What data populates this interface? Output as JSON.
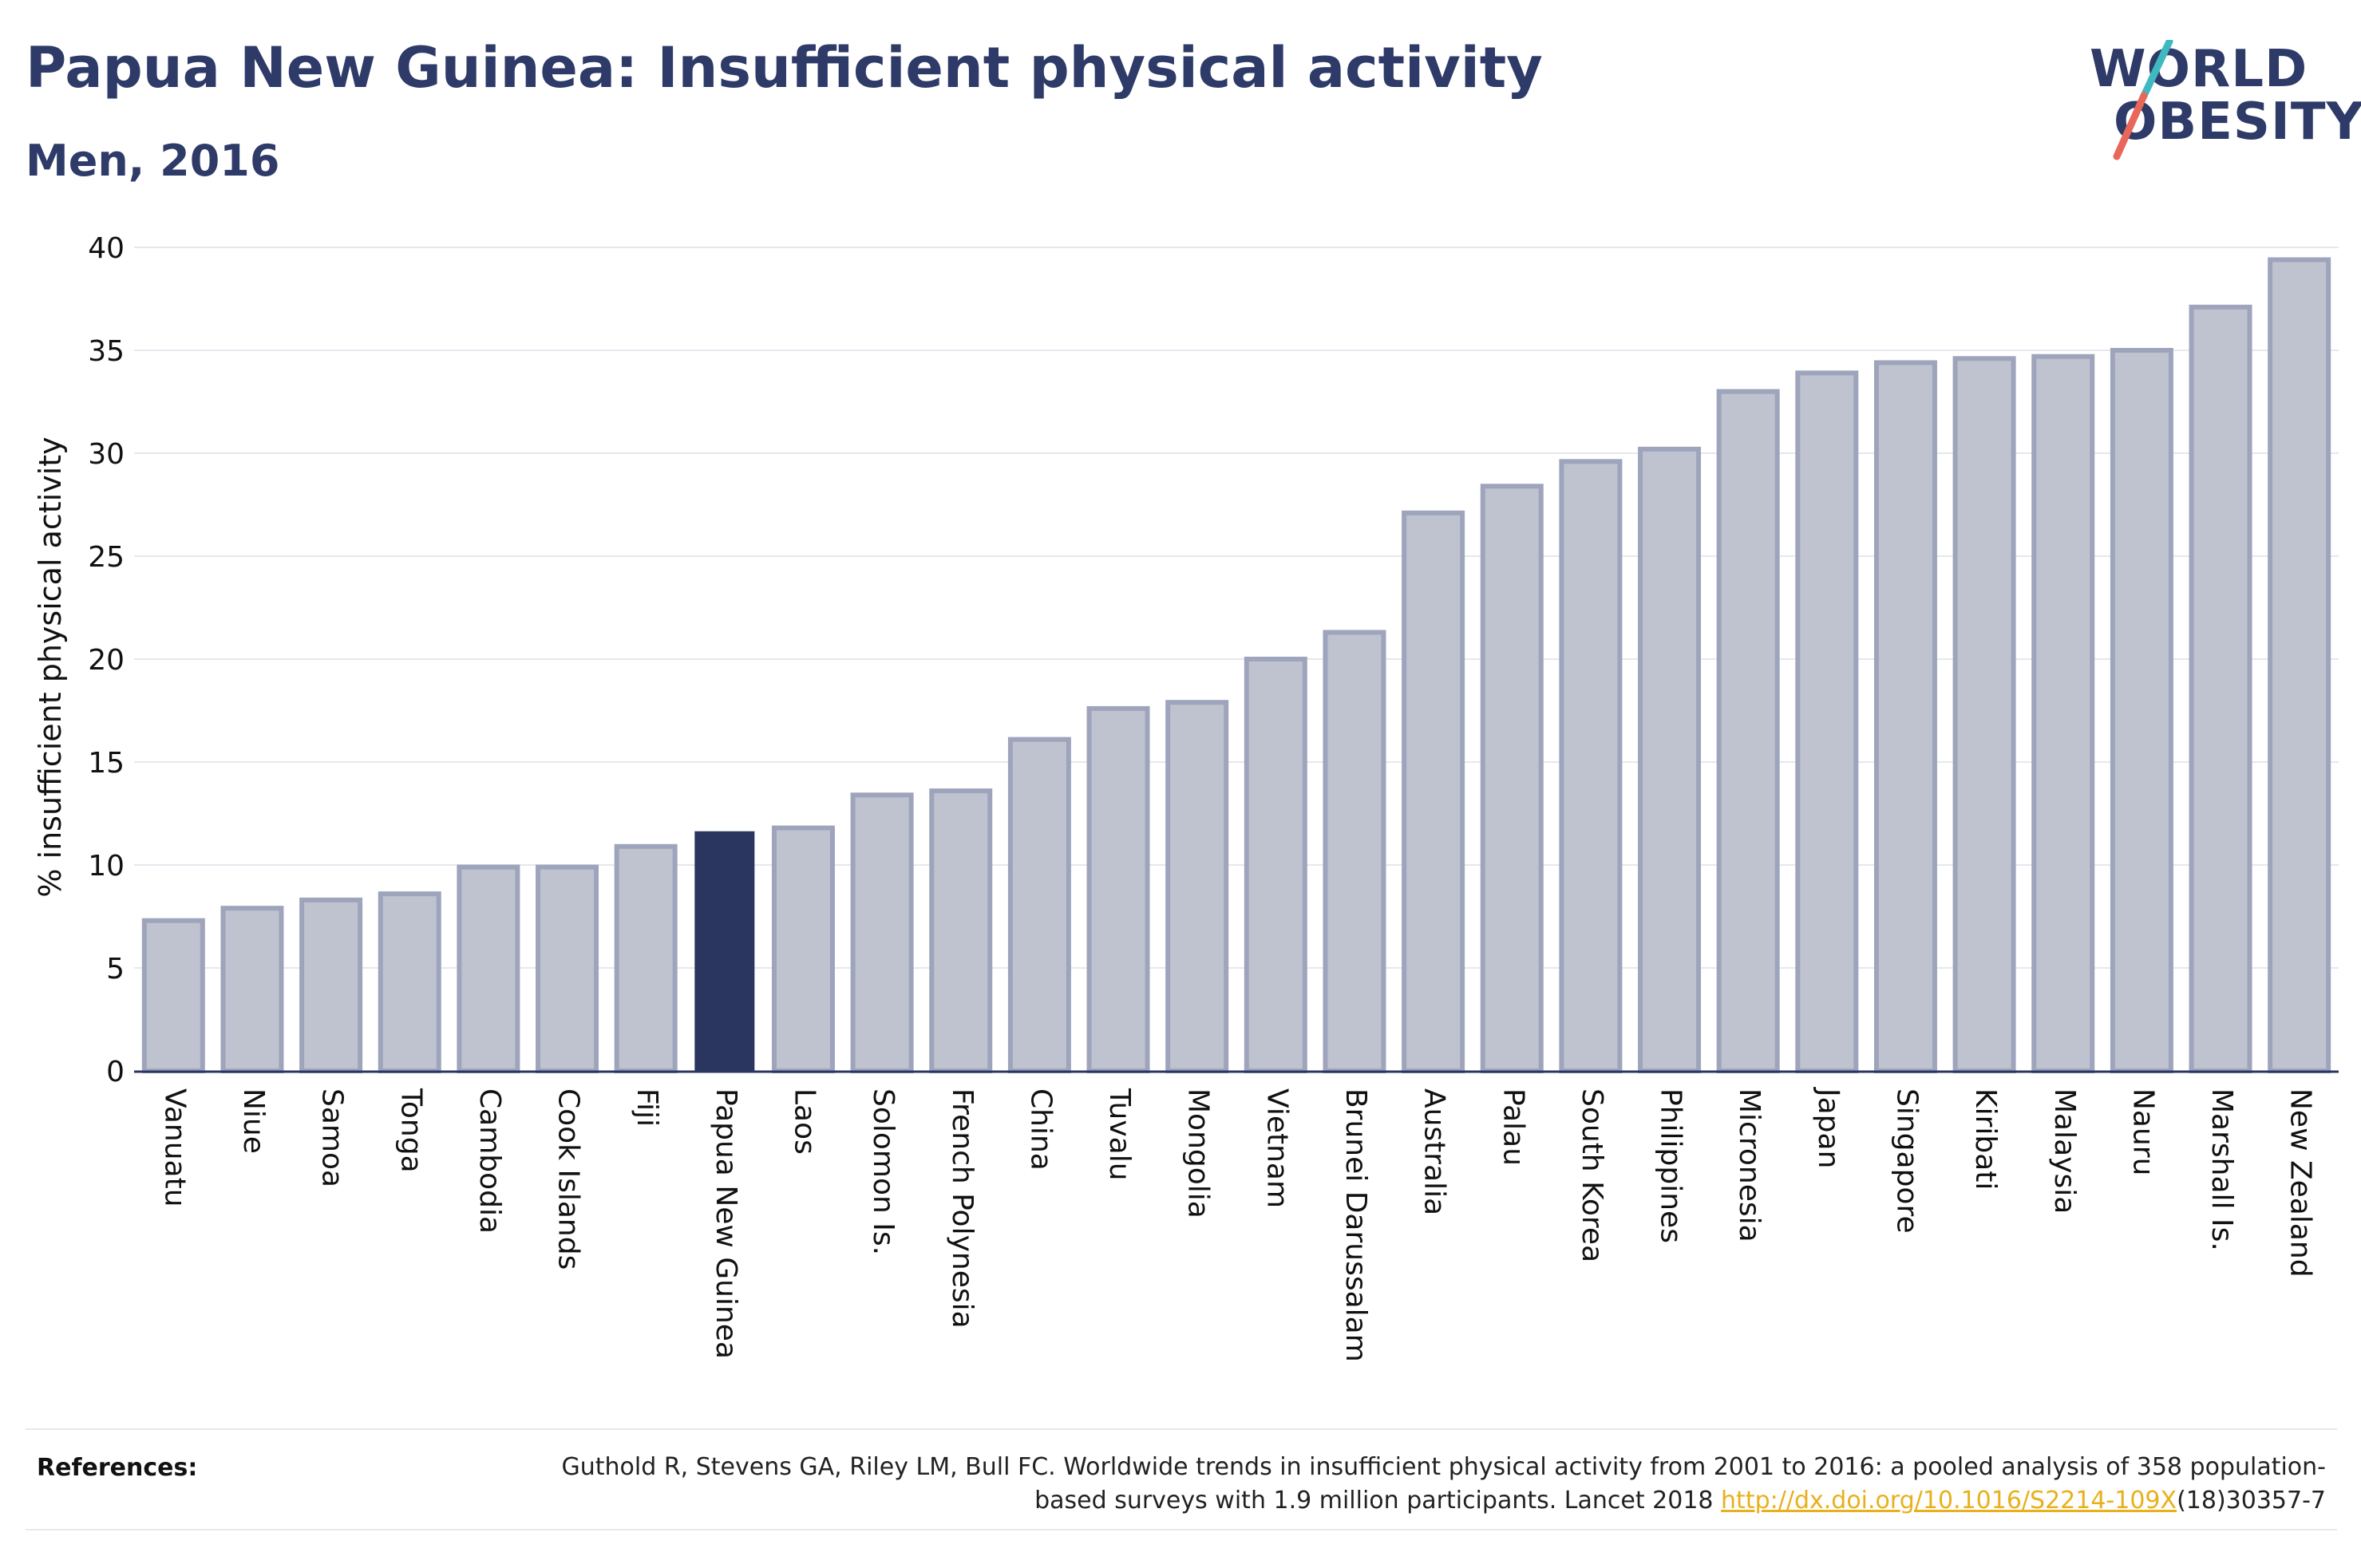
{
  "header": {
    "title": "Papua New Guinea: Insufficient physical activity",
    "subtitle": "Men, 2016"
  },
  "logo": {
    "line1": "WORLD",
    "line2": "OBESITY",
    "colors": {
      "text": "#2e3a68",
      "slash_top": "#3fb8c0",
      "slash_bottom": "#e8675a"
    }
  },
  "colors": {
    "highlight_bar": "#2b3660",
    "other_bar_fill": "#bfc3d0",
    "other_bar_stroke": "#9ea4bb",
    "grid": "#e6e8ee",
    "axis": "#2b3660"
  },
  "chart_data": {
    "type": "bar",
    "title": "Papua New Guinea: Insufficient physical activity",
    "subtitle": "Men, 2016",
    "xlabel": "",
    "ylabel": "% insufficient physical activity",
    "ylim": [
      0,
      40
    ],
    "yticks": [
      0,
      5,
      10,
      15,
      20,
      25,
      30,
      35,
      40
    ],
    "grid": true,
    "highlight": "Papua New Guinea",
    "categories": [
      "Vanuatu",
      "Niue",
      "Samoa",
      "Tonga",
      "Cambodia",
      "Cook Islands",
      "Fiji",
      "Papua New Guinea",
      "Laos",
      "Solomon Is.",
      "French Polynesia",
      "China",
      "Tuvalu",
      "Mongolia",
      "Vietnam",
      "Brunei Darussalam",
      "Australia",
      "Palau",
      "South Korea",
      "Philippines",
      "Micronesia",
      "Japan",
      "Singapore",
      "Kiribati",
      "Malaysia",
      "Nauru",
      "Marshall Is.",
      "New Zealand"
    ],
    "values": [
      7.3,
      7.9,
      8.3,
      8.6,
      9.9,
      9.9,
      10.9,
      11.6,
      11.8,
      13.4,
      13.6,
      16.1,
      17.6,
      17.9,
      20.0,
      21.3,
      27.1,
      28.4,
      29.6,
      30.2,
      33.0,
      33.9,
      34.4,
      34.6,
      34.7,
      35.0,
      37.1,
      39.4
    ]
  },
  "references": {
    "label": "References:",
    "text_before": "Guthold R, Stevens GA, Riley LM, Bull FC. Worldwide trends in insufficient physical activity from 2001 to 2016: a pooled analysis of 358 population-based surveys with 1.9 million participants. Lancet 2018 ",
    "link": "http://dx.doi.org/10.1016/S2214-109X",
    "text_after": "(18)30357-7"
  }
}
